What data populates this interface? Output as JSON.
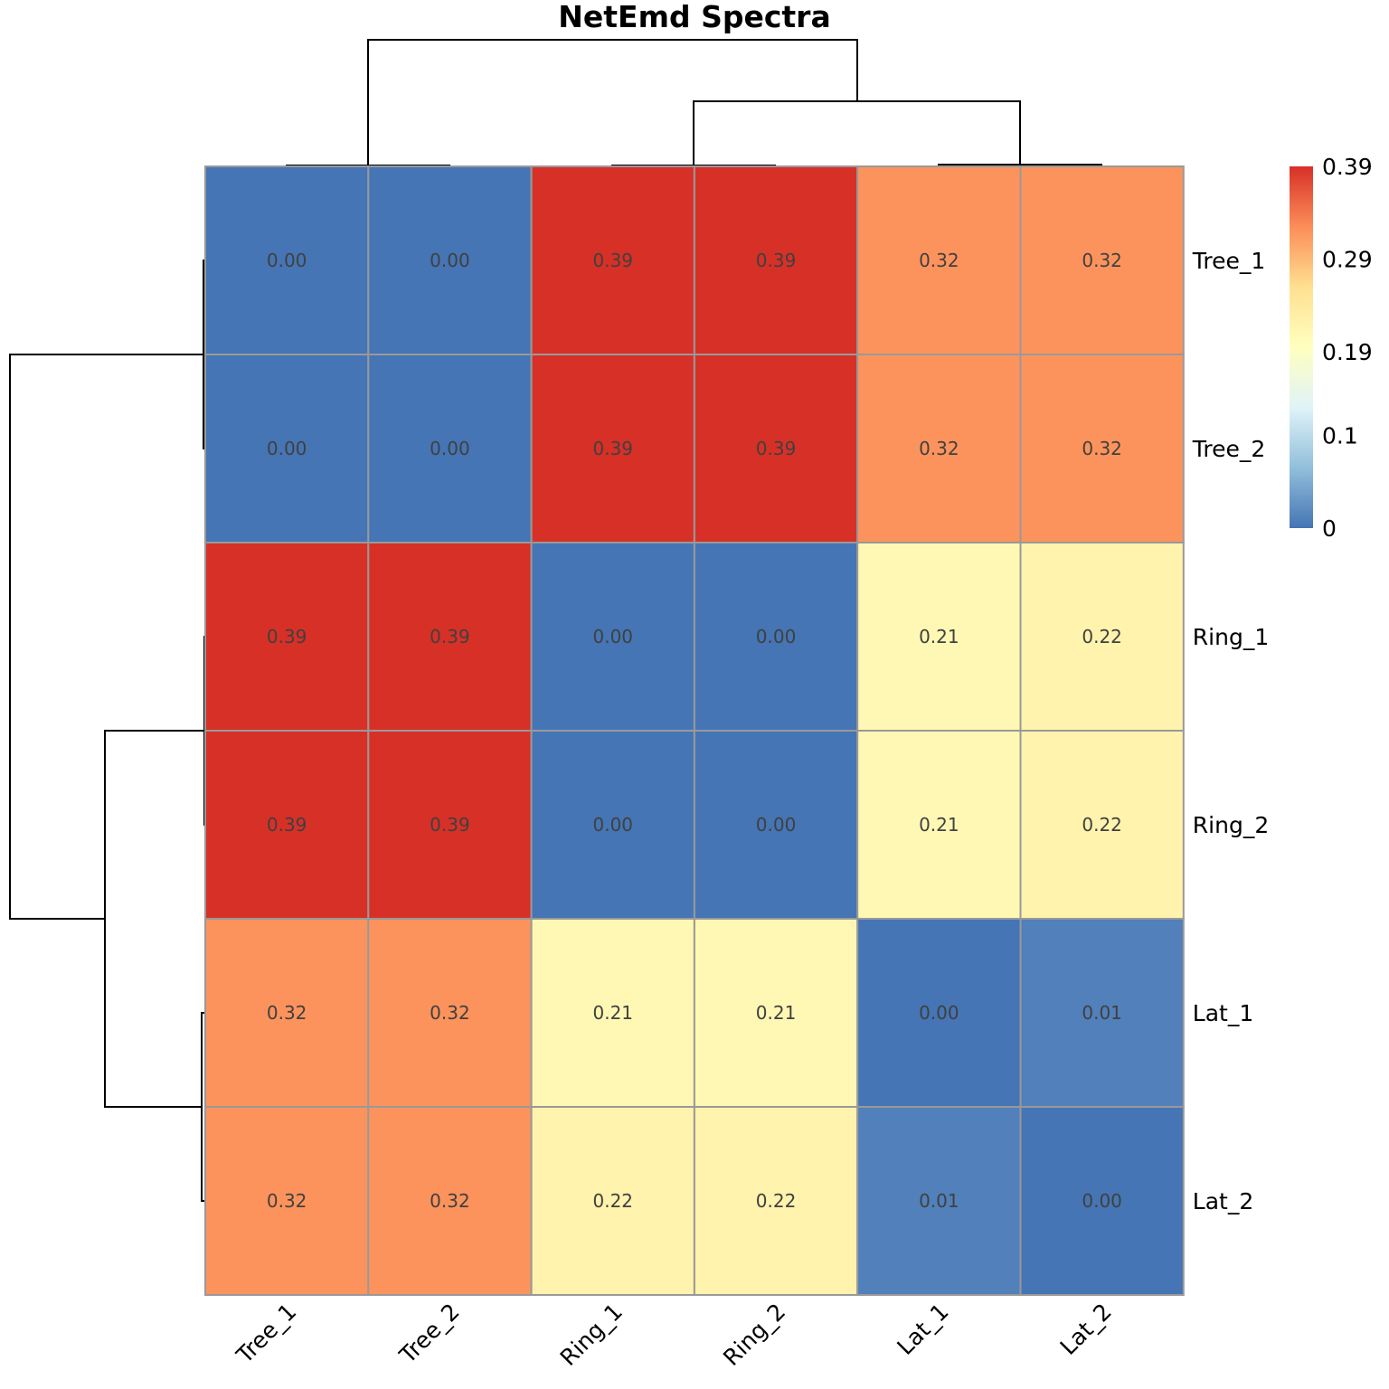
{
  "chart_data": {
    "type": "heatmap",
    "title": "NetEmd Spectra",
    "rows": [
      "Tree_1",
      "Tree_2",
      "Ring_1",
      "Ring_2",
      "Lat_1",
      "Lat_2"
    ],
    "columns": [
      "Tree_1",
      "Tree_2",
      "Ring_1",
      "Ring_2",
      "Lat_1",
      "Lat_2"
    ],
    "values": [
      [
        0.0,
        0.0,
        0.39,
        0.39,
        0.32,
        0.32
      ],
      [
        0.0,
        0.0,
        0.39,
        0.39,
        0.32,
        0.32
      ],
      [
        0.39,
        0.39,
        0.0,
        0.0,
        0.21,
        0.22
      ],
      [
        0.39,
        0.39,
        0.0,
        0.0,
        0.21,
        0.22
      ],
      [
        0.32,
        0.32,
        0.21,
        0.21,
        0.0,
        0.01
      ],
      [
        0.32,
        0.32,
        0.22,
        0.22,
        0.01,
        0.0
      ]
    ],
    "value_labels": [
      [
        "0.00",
        "0.00",
        "0.39",
        "0.39",
        "0.32",
        "0.32"
      ],
      [
        "0.00",
        "0.00",
        "0.39",
        "0.39",
        "0.32",
        "0.32"
      ],
      [
        "0.39",
        "0.39",
        "0.00",
        "0.00",
        "0.21",
        "0.22"
      ],
      [
        "0.39",
        "0.39",
        "0.00",
        "0.00",
        "0.21",
        "0.22"
      ],
      [
        "0.32",
        "0.32",
        "0.21",
        "0.21",
        "0.00",
        "0.01"
      ],
      [
        "0.32",
        "0.32",
        "0.22",
        "0.22",
        "0.01",
        "0.00"
      ]
    ],
    "color_scale": {
      "min": 0,
      "max": 0.39,
      "colors": [
        "#4575B4",
        "#91BFDB",
        "#E0F3F8",
        "#FFFFBF",
        "#FEE090",
        "#FC8D59",
        "#D73027"
      ],
      "ticks": [
        0,
        0.1,
        0.19,
        0.29,
        0.39
      ],
      "tick_labels": [
        "0",
        "0.1",
        "0.19",
        "0.29",
        "0.39"
      ]
    },
    "legend_position": "right",
    "row_dendrogram": "left",
    "column_dendrogram": "top"
  }
}
